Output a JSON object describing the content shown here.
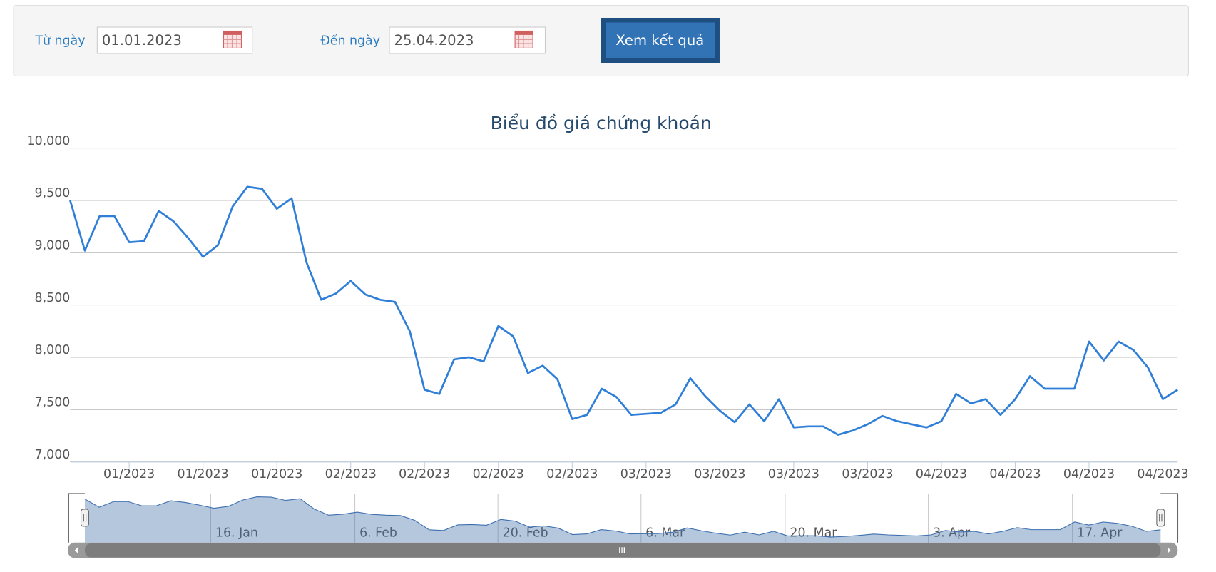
{
  "form": {
    "from_label": "Từ ngày",
    "from_value": "01.01.2023",
    "to_label": "Đến ngày",
    "to_value": "25.04.2023",
    "submit": "Xem kết quả"
  },
  "chart_data": {
    "type": "line",
    "title": "Biểu đồ giá chứng khoán",
    "color": "#2f7ed8",
    "categories": [
      null,
      null,
      null,
      null,
      "01/2023",
      null,
      null,
      null,
      null,
      "01/2023",
      null,
      null,
      null,
      null,
      "01/2023",
      null,
      null,
      null,
      null,
      "02/2023",
      null,
      null,
      null,
      null,
      "02/2023",
      null,
      null,
      null,
      null,
      "02/2023",
      null,
      null,
      null,
      null,
      "02/2023",
      null,
      null,
      null,
      null,
      "03/2023",
      null,
      null,
      null,
      null,
      "03/2023",
      null,
      null,
      null,
      null,
      "03/2023",
      null,
      null,
      null,
      null,
      "03/2023",
      null,
      null,
      null,
      null,
      "04/2023",
      null,
      null,
      null,
      null,
      "04/2023",
      null,
      null,
      null,
      null,
      "04/2023",
      null,
      null,
      null,
      null,
      "04/2023",
      null
    ],
    "values": [
      9500,
      9020,
      9350,
      9350,
      9100,
      9110,
      9400,
      9300,
      9140,
      8960,
      9070,
      9440,
      9630,
      9610,
      9420,
      9520,
      8910,
      8550,
      8610,
      8730,
      8600,
      8550,
      8530,
      8250,
      7690,
      7650,
      7980,
      8000,
      7960,
      8300,
      8200,
      7850,
      7920,
      7790,
      7410,
      7450,
      7700,
      7620,
      7450,
      7460,
      7470,
      7550,
      7800,
      7630,
      7490,
      7380,
      7550,
      7390,
      7600,
      7330,
      7340,
      7340,
      7260,
      7300,
      7360,
      7440,
      7390,
      7360,
      7330,
      7390,
      7650,
      7560,
      7600,
      7450,
      7600,
      7820,
      7700,
      7700,
      7700,
      8150,
      7970,
      8150,
      8070,
      7900,
      7600,
      7690
    ],
    "ylim": [
      7000,
      10000
    ],
    "yticks": [
      {
        "value": 7000,
        "label": "7,000"
      },
      {
        "value": 7500,
        "label": "7,500"
      },
      {
        "value": 8000,
        "label": "8,000"
      },
      {
        "value": 8500,
        "label": "8,500"
      },
      {
        "value": 9000,
        "label": "9,000"
      },
      {
        "value": 9500,
        "label": "9,500"
      },
      {
        "value": 10000,
        "label": "10,000"
      }
    ],
    "grid": true,
    "navigator": {
      "labels": [
        "16. Jan",
        "6. Feb",
        "20. Feb",
        "6. Mar",
        "20. Mar",
        "3. Apr",
        "17. Apr"
      ]
    }
  }
}
